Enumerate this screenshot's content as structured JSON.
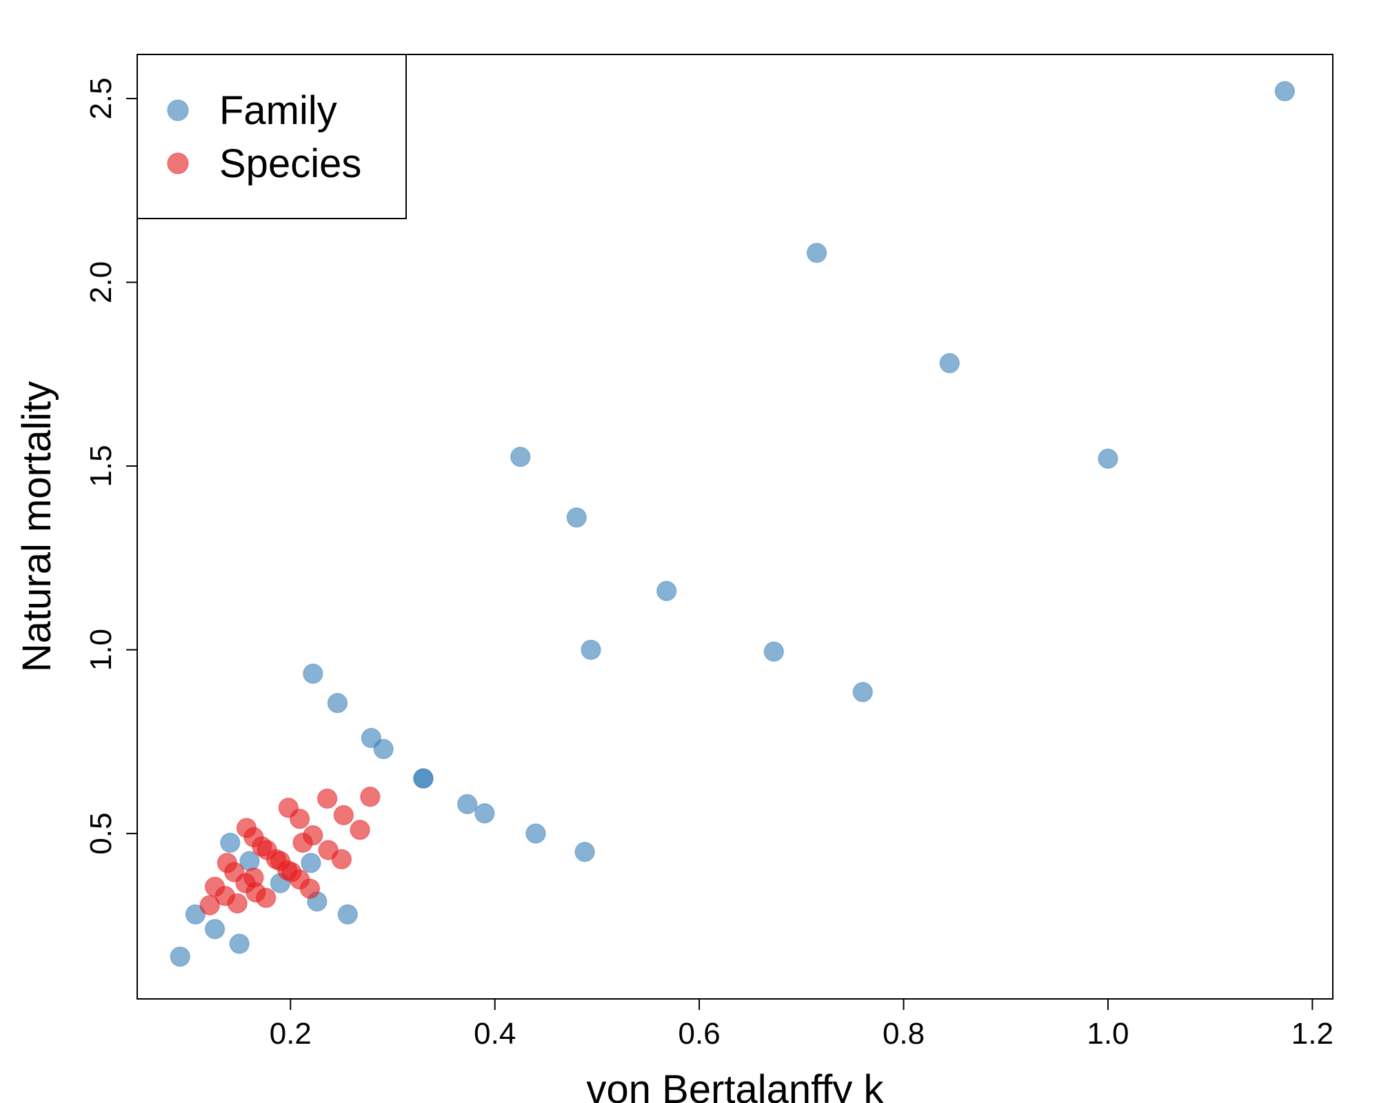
{
  "chart_data": {
    "type": "scatter",
    "xlabel": "von Bertalanffy k",
    "ylabel": "Natural mortality",
    "xlim": [
      0.05,
      1.22
    ],
    "ylim": [
      0.05,
      2.62
    ],
    "xticks": [
      {
        "value": 0.2,
        "label": "0.2"
      },
      {
        "value": 0.4,
        "label": "0.4"
      },
      {
        "value": 0.6,
        "label": "0.6"
      },
      {
        "value": 0.8,
        "label": "0.8"
      },
      {
        "value": 1.0,
        "label": "1.0"
      },
      {
        "value": 1.2,
        "label": "1.2"
      }
    ],
    "yticks": [
      {
        "value": 0.5,
        "label": "0.5"
      },
      {
        "value": 1.0,
        "label": "1.0"
      },
      {
        "value": 1.5,
        "label": "1.5"
      },
      {
        "value": 2.0,
        "label": "2.0"
      },
      {
        "value": 2.5,
        "label": "2.5"
      }
    ],
    "grid": false,
    "legend_position": "top-left",
    "series": [
      {
        "name": "Family",
        "color": "#377EB8",
        "points": [
          [
            1.173,
            2.52
          ],
          [
            0.715,
            2.08
          ],
          [
            0.845,
            1.78
          ],
          [
            1.0,
            1.52
          ],
          [
            0.425,
            1.525
          ],
          [
            0.48,
            1.36
          ],
          [
            0.568,
            1.16
          ],
          [
            0.494,
            1.0
          ],
          [
            0.673,
            0.995
          ],
          [
            0.76,
            0.885
          ],
          [
            0.222,
            0.935
          ],
          [
            0.246,
            0.855
          ],
          [
            0.279,
            0.76
          ],
          [
            0.291,
            0.73
          ],
          [
            0.33,
            0.65
          ],
          [
            0.33,
            0.65
          ],
          [
            0.373,
            0.58
          ],
          [
            0.39,
            0.555
          ],
          [
            0.44,
            0.5
          ],
          [
            0.488,
            0.45
          ],
          [
            0.141,
            0.475
          ],
          [
            0.16,
            0.425
          ],
          [
            0.22,
            0.42
          ],
          [
            0.19,
            0.365
          ],
          [
            0.226,
            0.315
          ],
          [
            0.256,
            0.28
          ],
          [
            0.107,
            0.28
          ],
          [
            0.126,
            0.24
          ],
          [
            0.15,
            0.2
          ],
          [
            0.092,
            0.165
          ]
        ]
      },
      {
        "name": "Species",
        "color": "#E41A1C",
        "points": [
          [
            0.278,
            0.6
          ],
          [
            0.236,
            0.595
          ],
          [
            0.198,
            0.57
          ],
          [
            0.252,
            0.55
          ],
          [
            0.209,
            0.54
          ],
          [
            0.268,
            0.51
          ],
          [
            0.157,
            0.515
          ],
          [
            0.164,
            0.49
          ],
          [
            0.222,
            0.495
          ],
          [
            0.212,
            0.475
          ],
          [
            0.172,
            0.465
          ],
          [
            0.177,
            0.455
          ],
          [
            0.237,
            0.455
          ],
          [
            0.186,
            0.43
          ],
          [
            0.19,
            0.425
          ],
          [
            0.25,
            0.43
          ],
          [
            0.138,
            0.42
          ],
          [
            0.145,
            0.395
          ],
          [
            0.197,
            0.4
          ],
          [
            0.201,
            0.395
          ],
          [
            0.209,
            0.375
          ],
          [
            0.164,
            0.38
          ],
          [
            0.156,
            0.365
          ],
          [
            0.219,
            0.35
          ],
          [
            0.126,
            0.355
          ],
          [
            0.136,
            0.33
          ],
          [
            0.166,
            0.34
          ],
          [
            0.176,
            0.325
          ],
          [
            0.148,
            0.31
          ],
          [
            0.121,
            0.305
          ]
        ]
      }
    ]
  }
}
